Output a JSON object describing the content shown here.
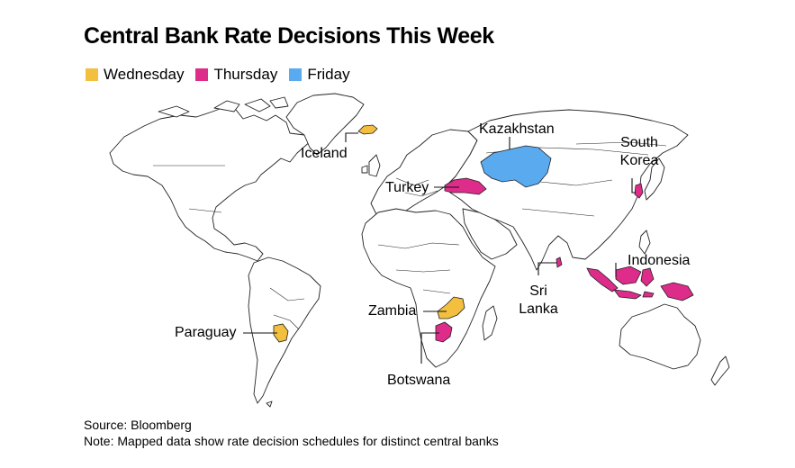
{
  "title": "Central Bank Rate Decisions This Week",
  "legend": [
    {
      "label": "Wednesday",
      "color": "#f2bf3f"
    },
    {
      "label": "Thursday",
      "color": "#de2c8a"
    },
    {
      "label": "Friday",
      "color": "#5aaaf0"
    }
  ],
  "map": {
    "land_fill": "#ffffff",
    "border_color": "#222222",
    "countries": [
      {
        "name": "Iceland",
        "label": "Iceland",
        "day": "Wednesday"
      },
      {
        "name": "Kazakhstan",
        "label": "Kazakhstan",
        "day": "Friday"
      },
      {
        "name": "South Korea",
        "label_line1": "South",
        "label_line2": "Korea",
        "day": "Thursday"
      },
      {
        "name": "Turkey",
        "label": "Turkey",
        "day": "Thursday"
      },
      {
        "name": "Indonesia",
        "label": "Indonesia",
        "day": "Thursday"
      },
      {
        "name": "Sri Lanka",
        "label_line1": "Sri",
        "label_line2": "Lanka",
        "day": "Thursday"
      },
      {
        "name": "Zambia",
        "label": "Zambia",
        "day": "Wednesday"
      },
      {
        "name": "Botswana",
        "label": "Botswana",
        "day": "Thursday"
      },
      {
        "name": "Paraguay",
        "label": "Paraguay",
        "day": "Wednesday"
      }
    ]
  },
  "footer": {
    "source": "Source: Bloomberg",
    "note": "Note: Mapped data show rate decision schedules for distinct central banks"
  }
}
